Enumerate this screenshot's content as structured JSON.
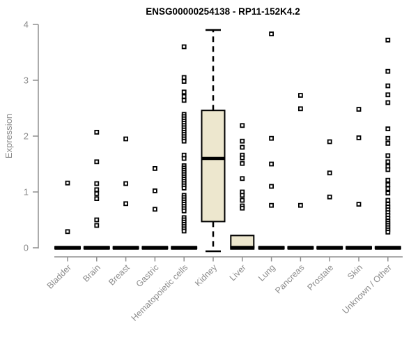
{
  "colors": {
    "background": "#ffffff",
    "axis": "#8f8f8f",
    "axis_text": "#8c8c8c",
    "box_fill": "#ede7ce",
    "box_stroke": "#000000",
    "point": "#000000",
    "title": "#000000"
  },
  "chart_data": {
    "type": "boxplot",
    "title": "ENSG00000254138 - RP11-152K4.2",
    "xlabel": "",
    "ylabel": "Expression",
    "ylim": [
      0,
      4
    ],
    "yticks": [
      0,
      1,
      2,
      3,
      4
    ],
    "grid": false,
    "legend": null,
    "categories": [
      "Bladder",
      "Brain",
      "Breast",
      "Gastric",
      "Hematopoietic cells",
      "Kidney",
      "Liver",
      "Lung",
      "Pancreas",
      "Prostate",
      "Skin",
      "Unknown / Other"
    ],
    "series": [
      {
        "category": "Bladder",
        "box": {
          "min": 0,
          "q1": 0,
          "median": 0,
          "q3": 0,
          "max": 0
        },
        "points": [
          1.16,
          0.29
        ]
      },
      {
        "category": "Brain",
        "box": {
          "min": 0,
          "q1": 0,
          "median": 0,
          "q3": 0,
          "max": 0
        },
        "points": [
          2.07,
          1.54,
          1.15,
          1.04,
          0.97,
          0.88,
          0.5,
          0.4
        ]
      },
      {
        "category": "Breast",
        "box": {
          "min": 0,
          "q1": 0,
          "median": 0,
          "q3": 0,
          "max": 0
        },
        "points": [
          1.95,
          1.15,
          0.79
        ]
      },
      {
        "category": "Gastric",
        "box": {
          "min": 0,
          "q1": 0,
          "median": 0,
          "q3": 0,
          "max": 0
        },
        "points": [
          1.42,
          1.02,
          0.69
        ]
      },
      {
        "category": "Hematopoietic cells",
        "box": {
          "min": 0,
          "q1": 0,
          "median": 0,
          "q3": 0,
          "max": 0
        },
        "points": [
          3.6,
          3.05,
          2.98,
          2.79,
          2.71,
          2.64,
          2.39,
          2.35,
          2.31,
          2.27,
          2.23,
          2.19,
          2.15,
          2.11,
          2.07,
          2.03,
          1.99,
          1.95,
          1.91,
          1.66,
          1.6,
          1.47,
          1.43,
          1.39,
          1.35,
          1.31,
          1.27,
          1.23,
          1.19,
          1.15,
          1.11,
          1.07,
          0.94,
          0.9,
          0.86,
          0.82,
          0.78,
          0.74,
          0.7,
          0.66,
          0.54,
          0.5,
          0.46,
          0.42,
          0.38,
          0.34,
          0.3
        ]
      },
      {
        "category": "Kidney",
        "box": {
          "min": 0,
          "q1": 0.47,
          "median": 1.6,
          "q3": 2.46,
          "max": 3.9
        },
        "points": []
      },
      {
        "category": "Liver",
        "box": {
          "min": 0,
          "q1": 0,
          "median": 0,
          "q3": 0.22,
          "max": 0.22
        },
        "points": [
          2.19,
          1.91,
          1.8,
          1.66,
          1.61,
          1.51,
          1.24,
          1.0,
          0.94,
          0.85,
          0.75,
          0.71
        ]
      },
      {
        "category": "Lung",
        "box": {
          "min": 0,
          "q1": 0,
          "median": 0,
          "q3": 0,
          "max": 0
        },
        "points": [
          3.83,
          1.96,
          1.5,
          1.1,
          0.76
        ]
      },
      {
        "category": "Pancreas",
        "box": {
          "min": 0,
          "q1": 0,
          "median": 0,
          "q3": 0,
          "max": 0
        },
        "points": [
          2.73,
          2.49,
          0.76
        ]
      },
      {
        "category": "Prostate",
        "box": {
          "min": 0,
          "q1": 0,
          "median": 0,
          "q3": 0,
          "max": 0
        },
        "points": [
          1.9,
          1.34,
          0.91
        ]
      },
      {
        "category": "Skin",
        "box": {
          "min": 0,
          "q1": 0,
          "median": 0,
          "q3": 0,
          "max": 0
        },
        "points": [
          2.48,
          1.97,
          0.78
        ]
      },
      {
        "category": "Unknown / Other",
        "box": {
          "min": 0,
          "q1": 0,
          "median": 0,
          "q3": 0,
          "max": 0
        },
        "points": [
          3.72,
          3.16,
          2.9,
          2.74,
          2.6,
          2.13,
          1.96,
          1.87,
          1.65,
          1.54,
          1.46,
          1.4,
          1.21,
          1.13,
          1.06,
          0.98,
          0.85,
          0.78,
          0.73,
          0.68,
          0.63,
          0.58,
          0.53,
          0.48,
          0.44,
          0.4,
          0.36,
          0.32,
          0.28
        ]
      }
    ]
  }
}
